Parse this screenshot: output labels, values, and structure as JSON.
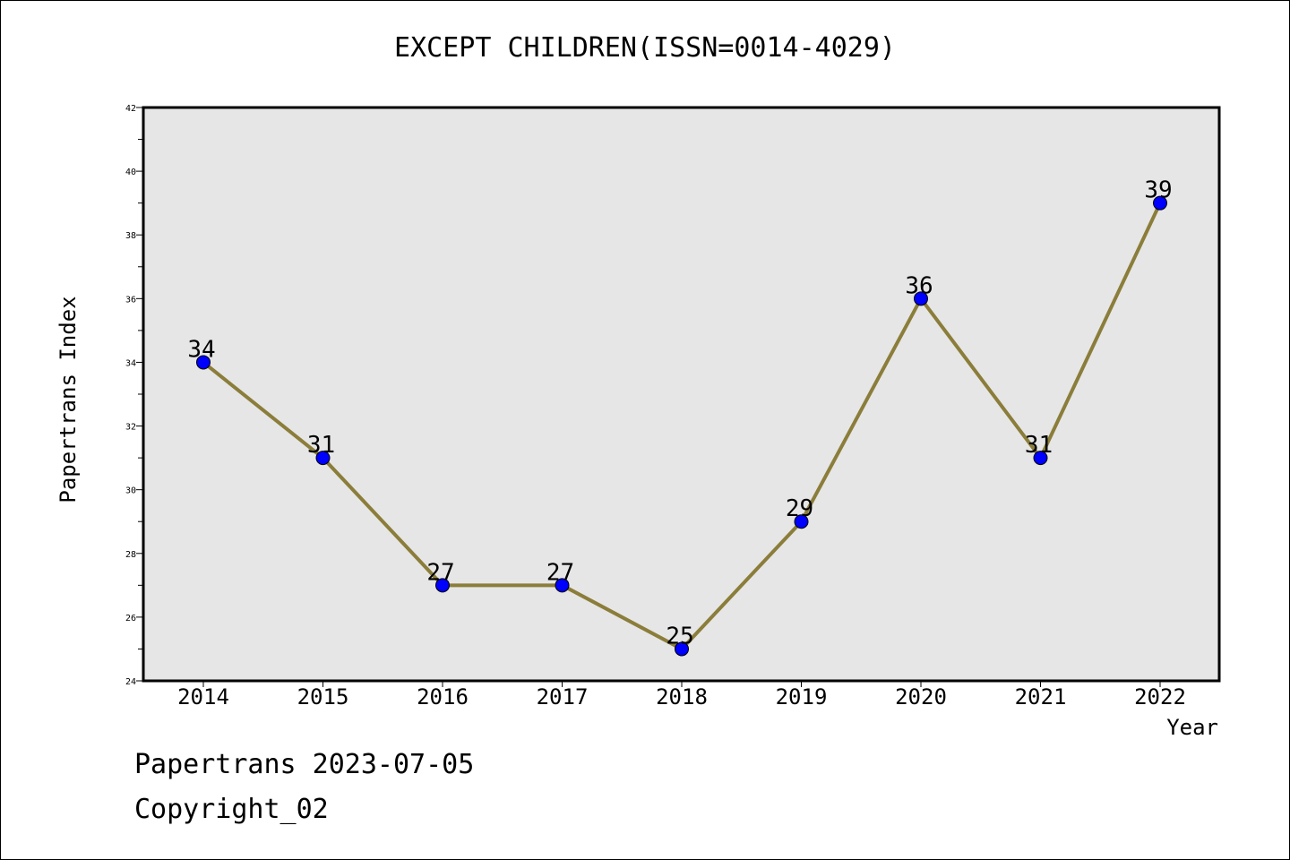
{
  "chart_data": {
    "type": "line",
    "title": "EXCEPT CHILDREN(ISSN=0014-4029)",
    "xlabel": "Year",
    "ylabel": "Papertrans Index",
    "x": [
      "2014",
      "2015",
      "2016",
      "2017",
      "2018",
      "2019",
      "2020",
      "2021",
      "2022"
    ],
    "series": [
      {
        "values": [
          34,
          31,
          27,
          27,
          25,
          29,
          36,
          31,
          39
        ]
      }
    ],
    "ylim": [
      24,
      42
    ],
    "yticks": [
      24,
      26,
      28,
      30,
      32,
      34,
      36,
      38,
      40,
      42
    ],
    "data_labels": [
      "34",
      "31",
      "27",
      "27",
      "25",
      "29",
      "36",
      "31",
      "39"
    ],
    "colors": {
      "line": "#8B7D3A",
      "marker": "#0000FF",
      "plot_background": "#E6E6E6"
    },
    "grid": false
  },
  "footer": {
    "date_text": "Papertrans 2023-07-05",
    "copyright_text": "Copyright_02"
  }
}
